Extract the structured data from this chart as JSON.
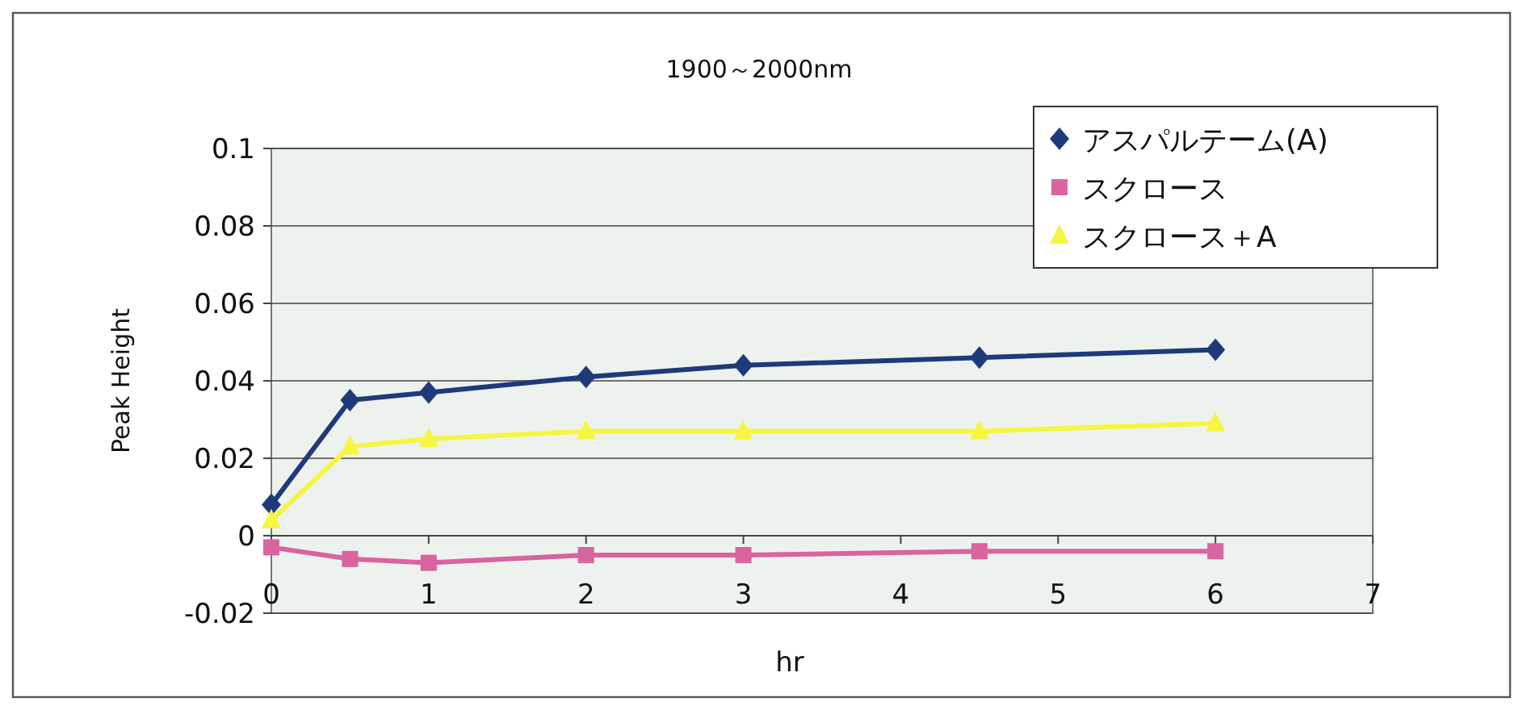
{
  "chart_data": {
    "type": "line",
    "title": "1900～2000nm",
    "xlabel": "hr",
    "ylabel": "Peak Height",
    "x": [
      0,
      0.5,
      1,
      2,
      3,
      4.5,
      6
    ],
    "series": [
      {
        "name": "アスパルテーム(A)",
        "color": "#1f3a7a",
        "marker": "diamond",
        "values": [
          0.008,
          0.035,
          0.037,
          0.041,
          0.044,
          0.046,
          0.048
        ]
      },
      {
        "name": "スクロース",
        "color": "#d9649f",
        "marker": "square",
        "values": [
          -0.003,
          -0.006,
          -0.007,
          -0.005,
          -0.005,
          -0.004,
          -0.004
        ]
      },
      {
        "name": "スクロース＋A",
        "color": "#f5f542",
        "marker": "triangle",
        "values": [
          0.004,
          0.023,
          0.025,
          0.027,
          0.027,
          0.027,
          0.029
        ]
      }
    ],
    "xlim": [
      0,
      7
    ],
    "xticks": [
      0,
      1,
      2,
      3,
      4,
      5,
      6,
      7
    ],
    "ylim": [
      -0.02,
      0.1
    ],
    "yticks": [
      {
        "value": -0.02,
        "label": "-0.02"
      },
      0,
      0.02,
      0.04,
      0.06,
      0.08,
      0.1
    ],
    "grid": "y",
    "legend": "top right",
    "line_style": "solid"
  }
}
